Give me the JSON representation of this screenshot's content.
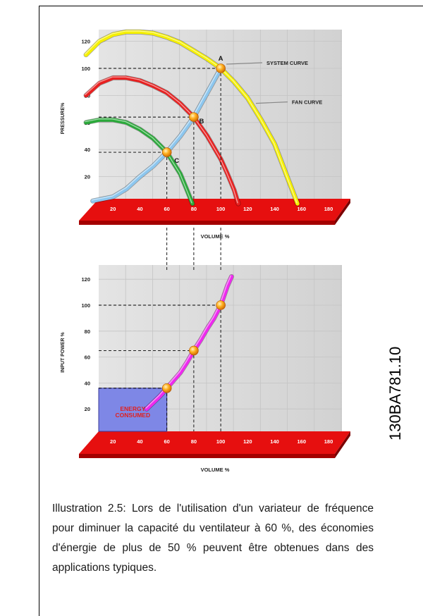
{
  "figure_code": "130BA781.10",
  "caption": "Illustration 2.5: Lors de l'utilisation d'un variateur de fréquence pour diminuer la capacité du ventilateur à 60 %, des économies d'énergie de plus de 50 % peuvent être obtenues dans des applications typiques.",
  "chart_data": [
    {
      "type": "line",
      "title": "",
      "xlabel": "VOLUME %",
      "ylabel": "PRESSURE%",
      "xlim": [
        0,
        180
      ],
      "ylim": [
        0,
        130
      ],
      "xticks": [
        "0",
        "20",
        "40",
        "60",
        "80",
        "100",
        "120",
        "140",
        "160",
        "180"
      ],
      "yticks": [
        "20",
        "40",
        "60",
        "80",
        "100",
        "120"
      ],
      "grid": true,
      "colors": {
        "fan_100": "#f5f000",
        "fan_80": "#e82020",
        "fan_60": "#2aaa3a",
        "system": "#8cc6ee",
        "floor": "#e60f0f",
        "wall": "#dcdcdc"
      },
      "series": [
        {
          "name": "FAN CURVE",
          "color": "#f5f000",
          "x": [
            0,
            10,
            20,
            30,
            40,
            50,
            60,
            70,
            80,
            90,
            100,
            110,
            120,
            130,
            140,
            150,
            157
          ],
          "y": [
            110,
            120,
            125,
            127,
            127,
            126,
            123,
            119,
            113,
            107,
            100,
            90,
            78,
            62,
            44,
            18,
            0
          ]
        },
        {
          "name": "",
          "color": "#e82020",
          "x": [
            0,
            10,
            20,
            30,
            40,
            50,
            60,
            70,
            80,
            90,
            100,
            105,
            110,
            113
          ],
          "y": [
            80,
            89,
            93,
            93,
            91,
            87,
            82,
            74,
            64,
            50,
            33,
            22,
            10,
            0
          ]
        },
        {
          "name": "",
          "color": "#2aaa3a",
          "x": [
            0,
            10,
            20,
            30,
            40,
            50,
            60,
            65,
            70,
            75,
            79
          ],
          "y": [
            60,
            62,
            62,
            60,
            55,
            48,
            38,
            30,
            22,
            10,
            0
          ]
        },
        {
          "name": "SYSTEM CURVE",
          "color": "#8cc6ee",
          "x": [
            5,
            10,
            20,
            30,
            40,
            50,
            60,
            70,
            80,
            90,
            100
          ],
          "y": [
            2,
            3,
            5,
            11,
            20,
            28,
            38,
            50,
            64,
            82,
            100
          ]
        }
      ],
      "points": [
        {
          "label": "A",
          "x": 100,
          "y": 100
        },
        {
          "label": "B",
          "x": 80,
          "y": 64
        },
        {
          "label": "C",
          "x": 60,
          "y": 38
        }
      ],
      "annotations": [
        "SYSTEM CURVE",
        "FAN CURVE"
      ]
    },
    {
      "type": "line",
      "title": "",
      "xlabel": "VOLUME %",
      "ylabel": "INPUT POWER %",
      "xlim": [
        0,
        180
      ],
      "ylim": [
        0,
        130
      ],
      "xticks": [
        "0",
        "20",
        "40",
        "60",
        "80",
        "100",
        "120",
        "140",
        "160",
        "180"
      ],
      "yticks": [
        "20",
        "40",
        "60",
        "80",
        "100",
        "120"
      ],
      "grid": true,
      "colors": {
        "power": "#ee28ee",
        "energy_box": "#7e87e6",
        "energy_text": "#e02020"
      },
      "series": [
        {
          "name": "",
          "color": "#ee28ee",
          "x": [
            45,
            50,
            55,
            60,
            65,
            70,
            75,
            80,
            85,
            90,
            95,
            100,
            105,
            108
          ],
          "y": [
            20,
            25,
            30,
            36,
            42,
            48,
            56,
            65,
            73,
            82,
            90,
            100,
            115,
            122
          ]
        }
      ],
      "points": [
        {
          "x": 60,
          "y": 36
        },
        {
          "x": 80,
          "y": 65
        },
        {
          "x": 100,
          "y": 100
        }
      ],
      "energy_box": {
        "x": [
          0,
          60
        ],
        "y": [
          0,
          36
        ],
        "label": "ENERGY CONSUMED",
        "lines": [
          "ENERGY",
          "CONSUMED"
        ]
      }
    }
  ]
}
